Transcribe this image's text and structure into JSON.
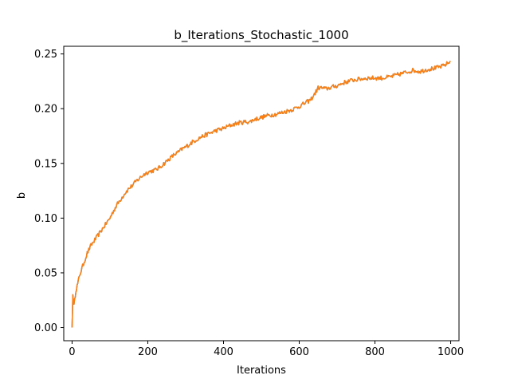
{
  "chart_data": {
    "type": "line",
    "title": "b_Iterations_Stochastic_1000",
    "xlabel": "Iterations",
    "ylabel": "b",
    "xlim": [
      -22,
      1022
    ],
    "ylim": [
      -0.012,
      0.257
    ],
    "xticks": [
      0,
      200,
      400,
      600,
      800,
      1000
    ],
    "xtick_labels": [
      "0",
      "200",
      "400",
      "600",
      "800",
      "1000"
    ],
    "yticks": [
      0.0,
      0.05,
      0.1,
      0.15,
      0.2,
      0.25
    ],
    "ytick_labels": [
      "0.00",
      "0.05",
      "0.10",
      "0.15",
      "0.20",
      "0.25"
    ],
    "grid": false,
    "legend": "none",
    "series": [
      {
        "color": "#ff7f0e",
        "overlay_color": "#1f77b4",
        "x": [
          0,
          2,
          5,
          10,
          15,
          20,
          30,
          40,
          50,
          60,
          70,
          80,
          90,
          100,
          110,
          120,
          130,
          140,
          150,
          160,
          170,
          180,
          190,
          200,
          210,
          220,
          230,
          240,
          250,
          260,
          270,
          280,
          290,
          300,
          320,
          340,
          360,
          380,
          400,
          420,
          440,
          460,
          470,
          480,
          500,
          520,
          540,
          560,
          580,
          600,
          620,
          630,
          640,
          650,
          660,
          670,
          680,
          700,
          720,
          740,
          760,
          780,
          800,
          820,
          840,
          860,
          880,
          900,
          920,
          940,
          960,
          980,
          1000
        ],
        "values": [
          0.0,
          0.03,
          0.02,
          0.034,
          0.04,
          0.048,
          0.058,
          0.068,
          0.075,
          0.08,
          0.085,
          0.09,
          0.095,
          0.1,
          0.107,
          0.113,
          0.118,
          0.123,
          0.127,
          0.13,
          0.134,
          0.137,
          0.14,
          0.142,
          0.143,
          0.144,
          0.146,
          0.149,
          0.152,
          0.155,
          0.158,
          0.16,
          0.163,
          0.165,
          0.17,
          0.174,
          0.177,
          0.18,
          0.182,
          0.185,
          0.187,
          0.188,
          0.188,
          0.19,
          0.192,
          0.194,
          0.195,
          0.197,
          0.199,
          0.202,
          0.206,
          0.208,
          0.213,
          0.219,
          0.219,
          0.218,
          0.219,
          0.221,
          0.224,
          0.226,
          0.227,
          0.228,
          0.228,
          0.228,
          0.229,
          0.231,
          0.233,
          0.235,
          0.234,
          0.236,
          0.237,
          0.239,
          0.243
        ]
      }
    ]
  }
}
